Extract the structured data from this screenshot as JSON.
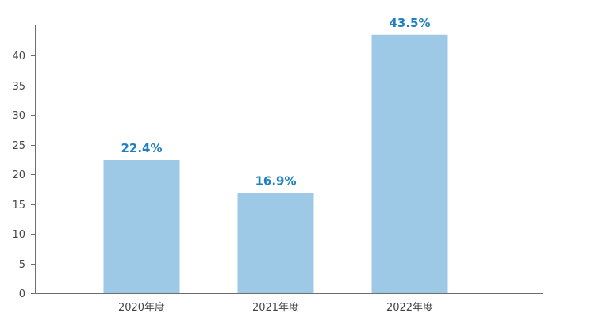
{
  "chart_data": {
    "type": "bar",
    "categories": [
      "2020年度",
      "2021年度",
      "2022年度"
    ],
    "values": [
      22.4,
      16.9,
      43.5
    ],
    "data_labels": [
      "22.4%",
      "16.9%",
      "43.5%"
    ],
    "y_ticks": [
      "0",
      "5",
      "10",
      "15",
      "20",
      "25",
      "30",
      "35",
      "40"
    ],
    "ylim": [
      0,
      45
    ],
    "grid": false,
    "legend": "none",
    "bar_color": "#9dc8e6",
    "label_color": "#1f7fc0",
    "axis_color": "#6e6e6e"
  }
}
